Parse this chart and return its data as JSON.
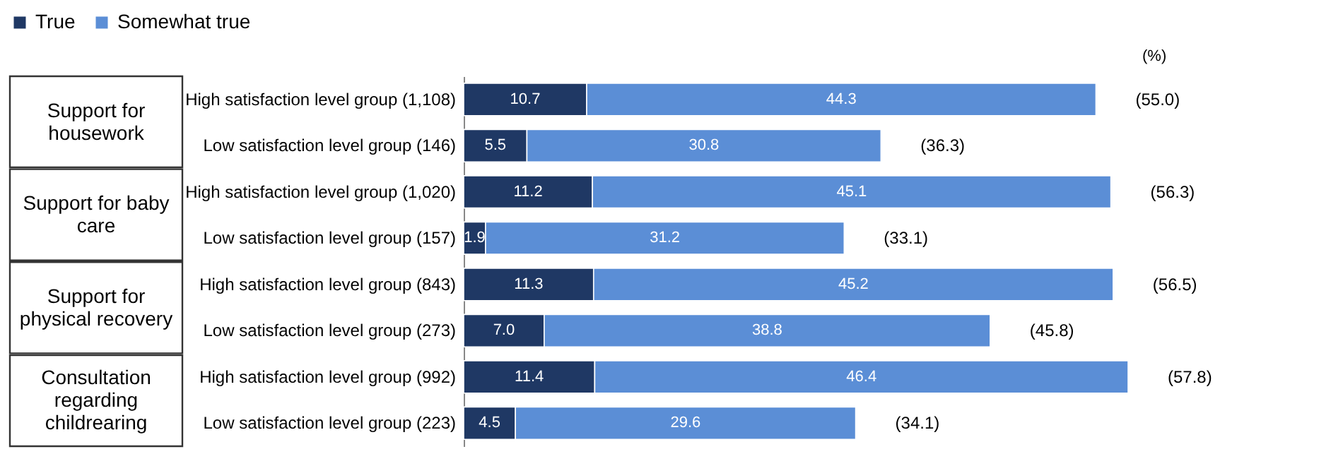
{
  "chart_data": {
    "type": "bar",
    "orientation": "horizontal",
    "stacked": true,
    "legend": "top",
    "categories": [
      "High satisfaction level group (1,108)",
      "Low satisfaction level group (146)",
      "High satisfaction level group (1,020)",
      "Low satisfaction level group (157)",
      "High satisfaction level group (843)",
      "Low satisfaction level group (273)",
      "High satisfaction level group (992)",
      "Low satisfaction level group (223)"
    ],
    "series": [
      {
        "name": "True",
        "color": "#1f3864",
        "values": [
          10.7,
          5.5,
          11.2,
          1.9,
          11.3,
          7.0,
          11.4,
          4.5
        ],
        "value_labels": [
          "10.7",
          "5.5",
          "11.2",
          "1.9",
          "11.3",
          "7.0",
          "11.4",
          "4.5"
        ]
      },
      {
        "name": "Somewhat true",
        "color": "#5b8ed6",
        "values": [
          44.3,
          30.8,
          45.1,
          31.2,
          45.2,
          38.8,
          46.4,
          29.6
        ],
        "value_labels": [
          "44.3",
          "30.8",
          "45.1",
          "31.2",
          "45.2",
          "38.8",
          "46.4",
          "29.6"
        ]
      }
    ],
    "totals": [
      "(55.0)",
      "(36.3)",
      "(56.3)",
      "(33.1)",
      "(56.5)",
      "(45.8)",
      "(57.8)",
      "(34.1)"
    ],
    "annotations": [
      "Support for housework",
      "Support for baby care",
      "Support for physical recovery",
      "Consultation regarding childrearing",
      "(%)"
    ]
  }
}
